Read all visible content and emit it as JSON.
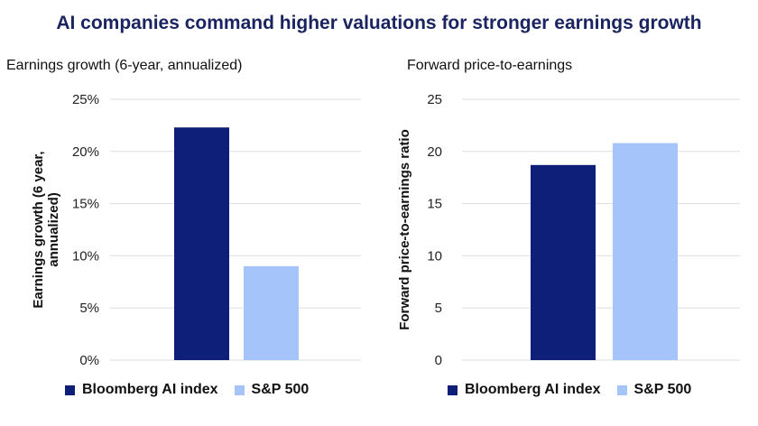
{
  "title": "AI companies command higher valuations for stronger earnings growth",
  "colors": {
    "title": "#1a2460",
    "ai_index": "#0d1f78",
    "sp500": "#a4c4fa",
    "grid": "#dddddd"
  },
  "chart_data": [
    {
      "type": "bar",
      "title": "Earnings growth (6-year, annualized)",
      "ylabel": "Earnings growth (6 year, annualized)",
      "ylim": [
        0,
        25
      ],
      "yticks": [
        "0%",
        "5%",
        "10%",
        "15%",
        "20%",
        "25%"
      ],
      "grid": true,
      "legend_position": "bottom",
      "series": [
        {
          "name": "Bloomberg AI index",
          "values": [
            22.3
          ]
        },
        {
          "name": "S&P 500",
          "values": [
            9.0
          ]
        }
      ]
    },
    {
      "type": "bar",
      "title": "Forward price-to-earnings",
      "ylabel": "Forward price-to-earnings ratio",
      "ylim": [
        0,
        25
      ],
      "yticks": [
        "0",
        "5",
        "10",
        "15",
        "20",
        "25"
      ],
      "grid": true,
      "legend_position": "bottom",
      "series": [
        {
          "name": "Bloomberg AI index",
          "values": [
            18.7
          ]
        },
        {
          "name": "S&P 500",
          "values": [
            20.8
          ]
        }
      ]
    }
  ]
}
